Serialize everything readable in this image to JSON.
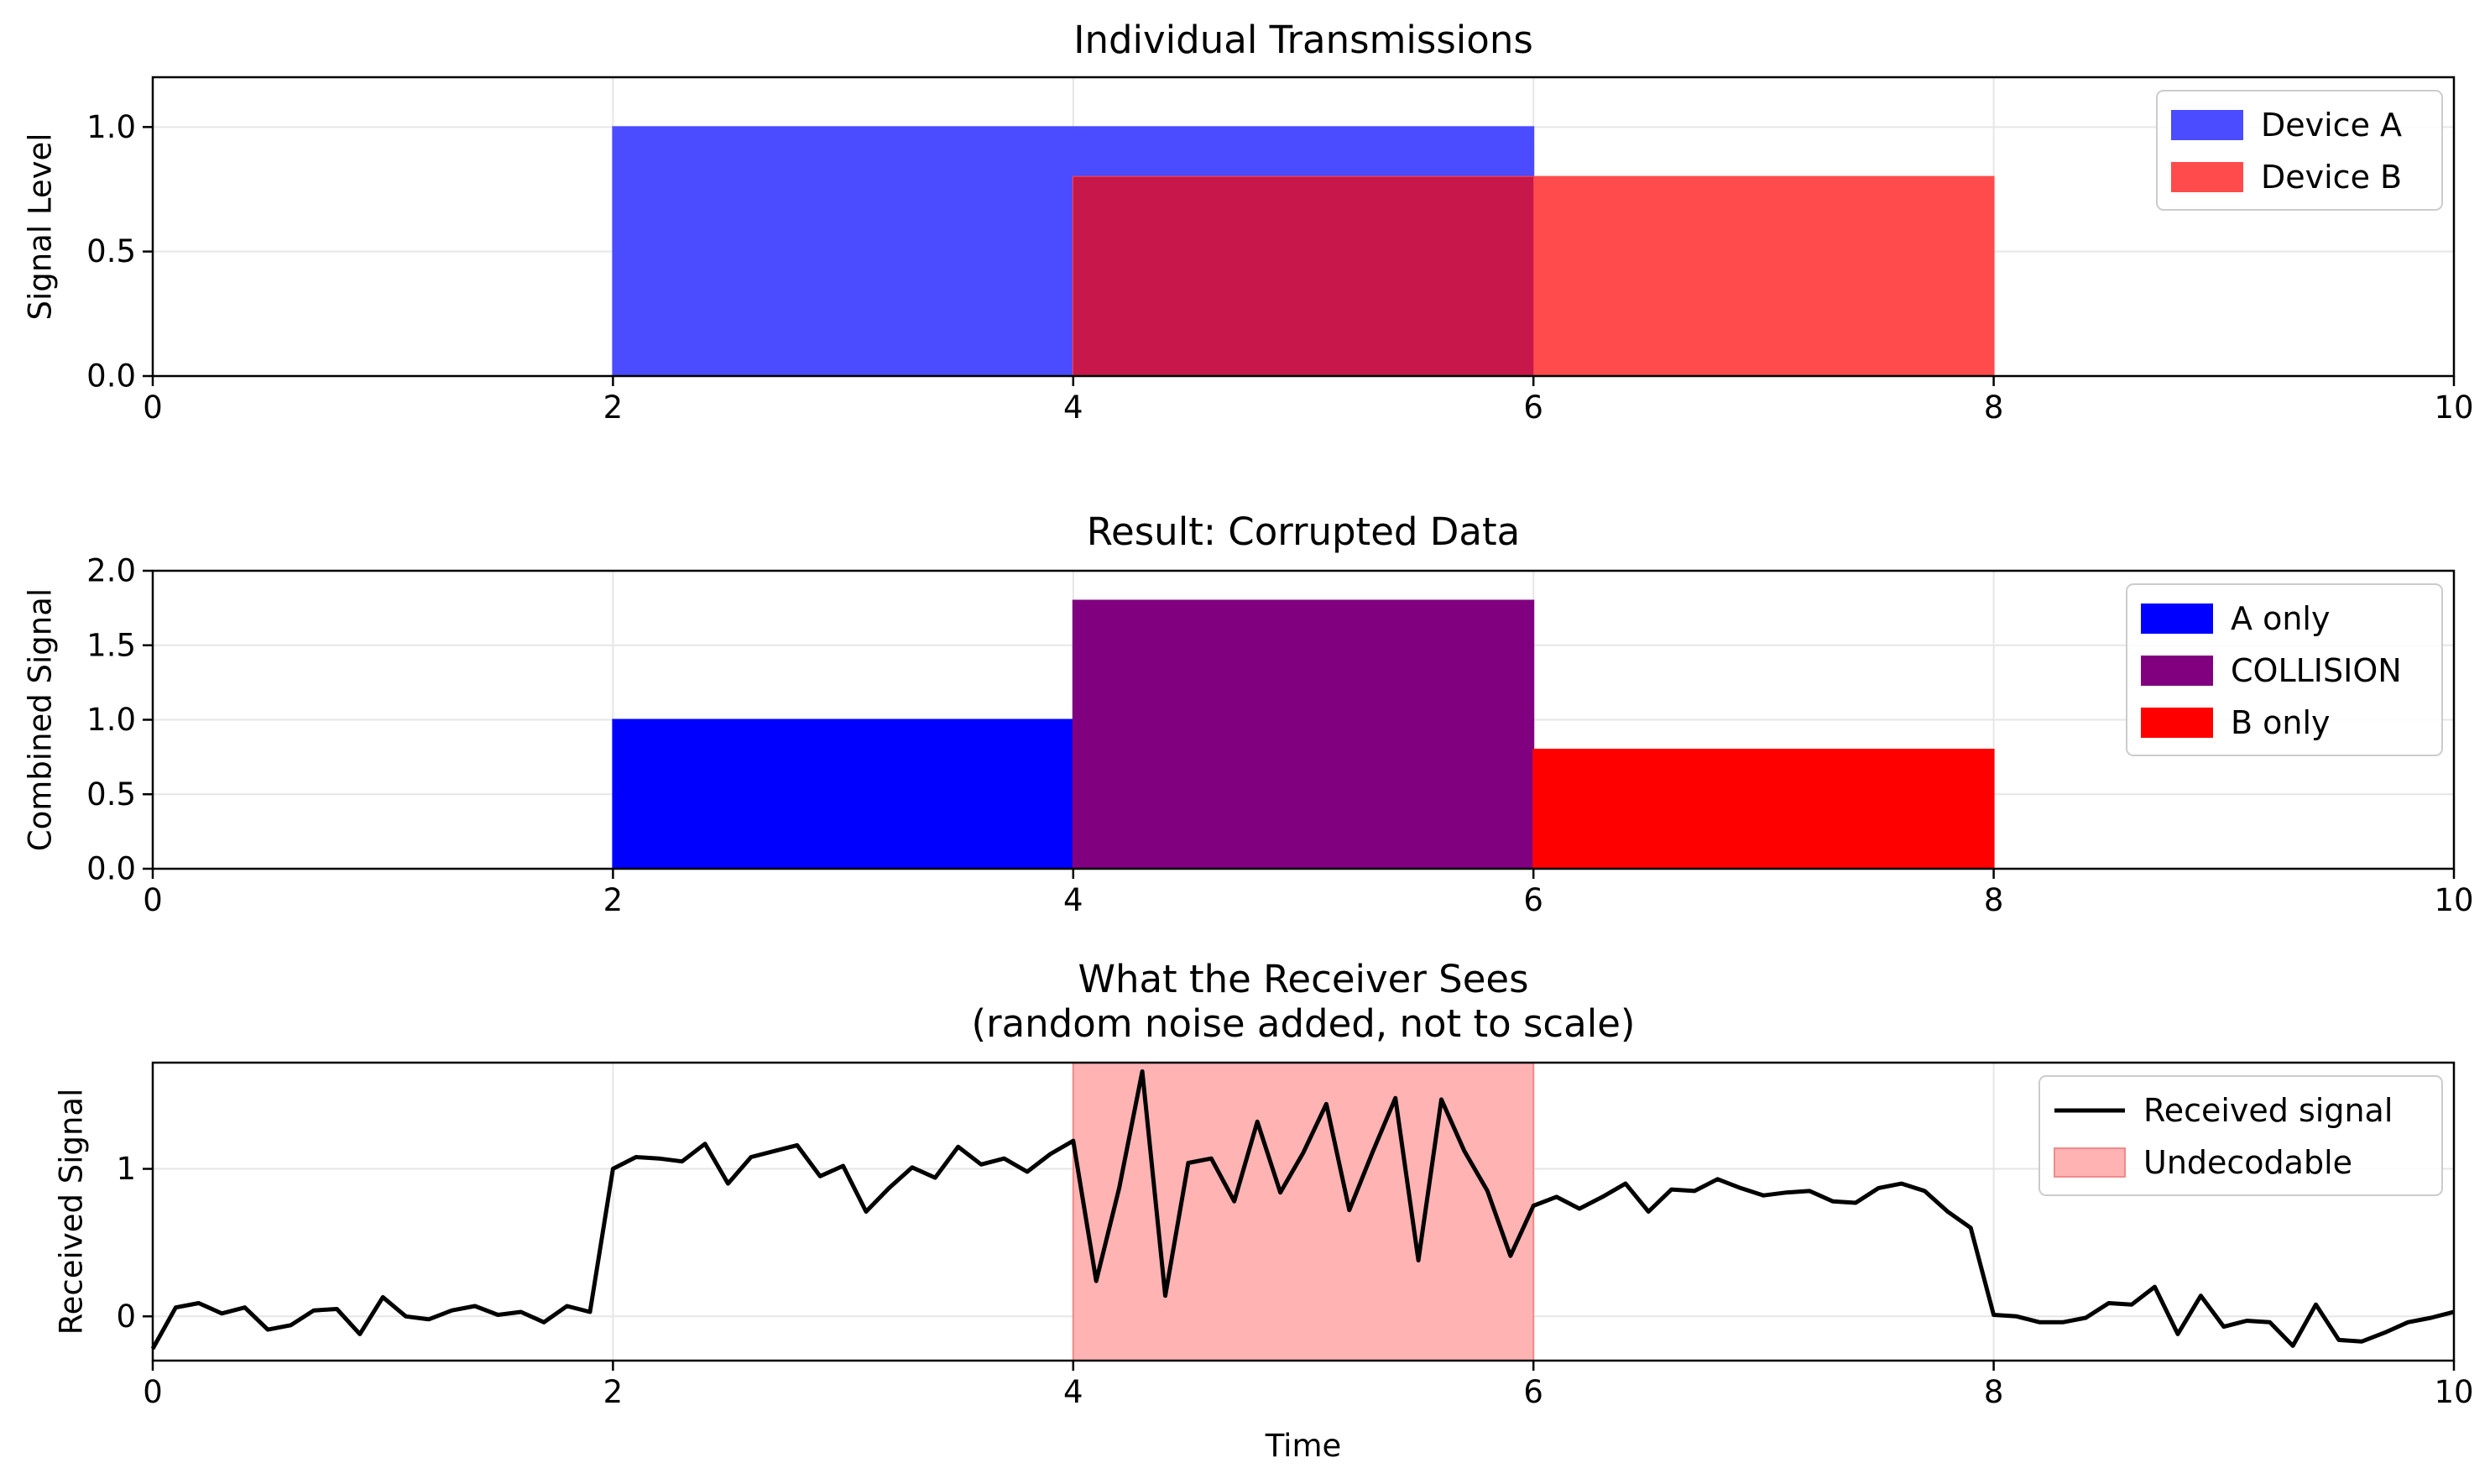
{
  "chart_data": [
    {
      "type": "bar",
      "title": "Individual Transmissions",
      "xlabel": "",
      "ylabel": "Signal Level",
      "xlim": [
        0,
        10
      ],
      "ylim": [
        0,
        1.2
      ],
      "xticks": [
        "0",
        "2",
        "4",
        "6",
        "8",
        "10"
      ],
      "yticks": [
        "0.0",
        "0.5",
        "1.0"
      ],
      "grid": true,
      "legend_position": "top-right",
      "series": [
        {
          "name": "Device A",
          "color": "#4b4bff",
          "x_start": 2,
          "x_end": 6,
          "value": 1.0
        },
        {
          "name": "Device B",
          "color": "#ff4b4b",
          "x_start": 4,
          "x_end": 8,
          "value": 0.8
        }
      ]
    },
    {
      "type": "bar",
      "title": "Result: Corrupted Data",
      "xlabel": "",
      "ylabel": "Combined Signal",
      "xlim": [
        0,
        10
      ],
      "ylim": [
        0,
        2.0
      ],
      "xticks": [
        "0",
        "2",
        "4",
        "6",
        "8",
        "10"
      ],
      "yticks": [
        "0.0",
        "0.5",
        "1.0",
        "1.5",
        "2.0"
      ],
      "grid": true,
      "legend_position": "top-right",
      "series": [
        {
          "name": "A only",
          "color": "#0000ff",
          "x_start": 2,
          "x_end": 4,
          "value": 1.0
        },
        {
          "name": "COLLISION",
          "color": "#800080",
          "x_start": 4,
          "x_end": 6,
          "value": 1.8
        },
        {
          "name": "B only",
          "color": "#ff0000",
          "x_start": 6,
          "x_end": 8,
          "value": 0.8
        }
      ]
    },
    {
      "type": "line",
      "title": "What the Receiver Sees",
      "subtitle": "(random noise added, not to scale)",
      "xlabel": "Time",
      "ylabel": "Received Signal",
      "xlim": [
        0,
        10
      ],
      "ylim": [
        -0.3,
        1.72
      ],
      "xticks": [
        "0",
        "2",
        "4",
        "6",
        "8",
        "10"
      ],
      "yticks": [
        "0",
        "1"
      ],
      "grid": true,
      "legend_position": "top-right",
      "series": [
        {
          "name": "Received signal",
          "color": "#000000",
          "x": [
            0,
            0.1,
            0.2,
            0.3,
            0.4,
            0.5,
            0.6,
            0.7,
            0.8,
            0.9,
            1.0,
            1.1,
            1.2,
            1.3,
            1.4,
            1.5,
            1.6,
            1.7,
            1.8,
            1.9,
            2.0,
            2.1,
            2.2,
            2.3,
            2.4,
            2.5,
            2.6,
            2.7,
            2.8,
            2.9,
            3.0,
            3.1,
            3.2,
            3.3,
            3.4,
            3.5,
            3.6,
            3.7,
            3.8,
            3.9,
            4.0,
            4.1,
            4.2,
            4.3,
            4.4,
            4.5,
            4.6,
            4.7,
            4.8,
            4.9,
            5.0,
            5.1,
            5.2,
            5.3,
            5.4,
            5.5,
            5.6,
            5.7,
            5.8,
            5.9,
            6.0,
            6.1,
            6.2,
            6.3,
            6.4,
            6.5,
            6.6,
            6.7,
            6.8,
            6.9,
            7.0,
            7.1,
            7.2,
            7.3,
            7.4,
            7.5,
            7.6,
            7.7,
            7.8,
            7.9,
            8.0,
            8.1,
            8.2,
            8.3,
            8.4,
            8.5,
            8.6,
            8.7,
            8.8,
            8.9,
            9.0,
            9.1,
            9.2,
            9.3,
            9.4,
            9.5,
            9.6,
            9.7,
            9.8,
            9.9,
            10.0
          ],
          "y": [
            -0.22,
            0.06,
            0.09,
            0.02,
            0.06,
            -0.09,
            -0.06,
            0.04,
            0.05,
            -0.12,
            0.13,
            0.0,
            -0.02,
            0.04,
            0.07,
            0.01,
            0.03,
            -0.04,
            0.07,
            0.03,
            1.0,
            1.08,
            1.07,
            1.05,
            1.17,
            0.9,
            1.08,
            1.12,
            1.16,
            0.95,
            1.02,
            0.71,
            0.87,
            1.01,
            0.94,
            1.15,
            1.03,
            1.07,
            0.98,
            1.1,
            1.19,
            0.24,
            0.87,
            1.66,
            0.14,
            1.04,
            1.07,
            0.78,
            1.32,
            0.84,
            1.11,
            1.44,
            0.72,
            1.11,
            1.48,
            0.38,
            1.47,
            1.12,
            0.85,
            0.41,
            0.75,
            0.81,
            0.73,
            0.81,
            0.9,
            0.71,
            0.86,
            0.85,
            0.93,
            0.87,
            0.82,
            0.84,
            0.85,
            0.78,
            0.77,
            0.87,
            0.9,
            0.85,
            0.71,
            0.6,
            0.01,
            0.0,
            -0.04,
            -0.04,
            -0.01,
            0.09,
            0.08,
            0.2,
            -0.12,
            0.14,
            -0.07,
            -0.03,
            -0.04,
            -0.2,
            0.08,
            -0.16,
            -0.17,
            -0.11,
            -0.04,
            -0.01,
            0.03
          ]
        }
      ],
      "shaded_regions": [
        {
          "name": "Undecodable",
          "color": "#ff8080",
          "x_start": 4,
          "x_end": 6
        }
      ]
    }
  ]
}
